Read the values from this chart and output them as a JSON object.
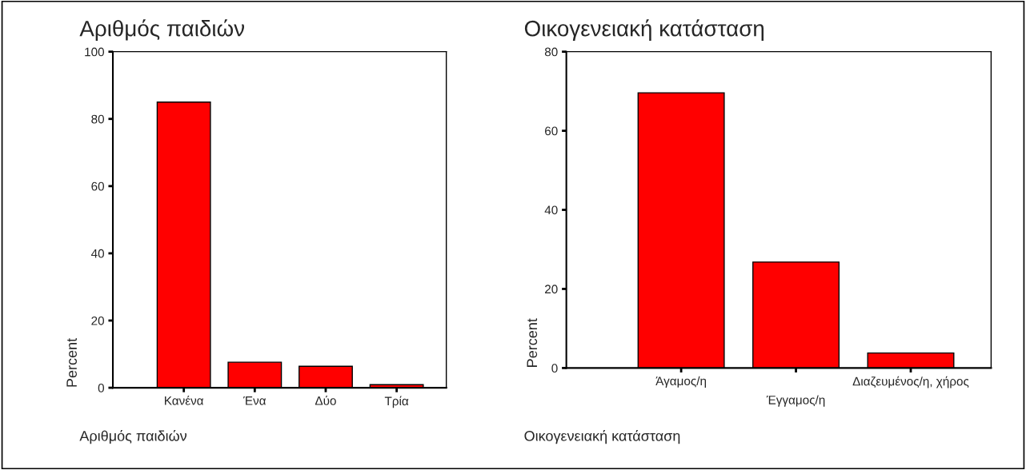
{
  "chart_data": [
    {
      "type": "bar",
      "title": "Αριθμός παιδιών",
      "xlabel": "Αριθμός παιδιών",
      "ylabel": "Percent",
      "categories": [
        "Κανένα",
        "Ένα",
        "Δύο",
        "Τρία"
      ],
      "values": [
        85,
        7.6,
        6.4,
        0.9
      ],
      "color": "#ff0000",
      "ylim": [
        0,
        100
      ],
      "yticks": [
        0,
        20,
        40,
        60,
        80,
        100
      ],
      "grid": false
    },
    {
      "type": "bar",
      "title": "Οικογενειακή κατάσταση",
      "xlabel": "Οικογενειακή κατάσταση",
      "ylabel": "Percent",
      "categories": [
        "Άγαμος/η",
        "Έγγαμος/η",
        "Διαζευμένος/η, χήρος"
      ],
      "values": [
        69.6,
        26.8,
        3.8
      ],
      "color": "#ff0000",
      "ylim": [
        0,
        80
      ],
      "yticks": [
        0,
        20,
        40,
        60,
        80
      ],
      "grid": false
    }
  ]
}
